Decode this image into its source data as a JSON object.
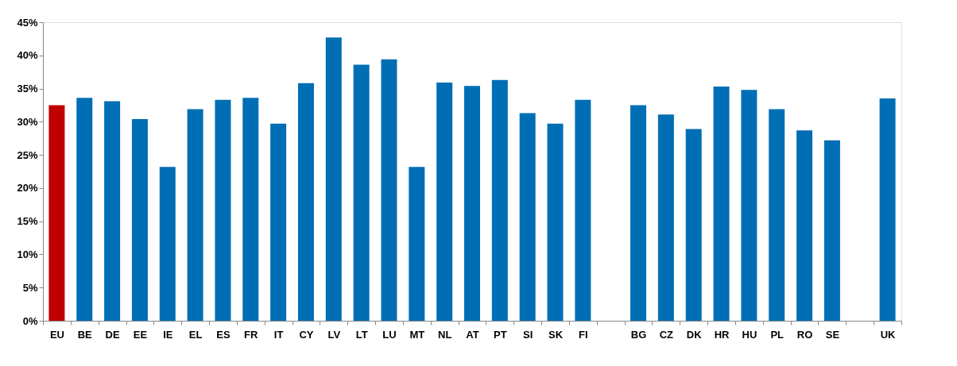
{
  "chart_data": {
    "type": "bar",
    "categories": [
      "EU",
      "BE",
      "DE",
      "EE",
      "IE",
      "EL",
      "ES",
      "FR",
      "IT",
      "CY",
      "LV",
      "LT",
      "LU",
      "MT",
      "NL",
      "AT",
      "PT",
      "SI",
      "SK",
      "FI",
      null,
      "BG",
      "CZ",
      "DK",
      "HR",
      "HU",
      "PL",
      "RO",
      "SE",
      null,
      "UK"
    ],
    "values": [
      32.5,
      33.6,
      33.1,
      30.4,
      23.2,
      31.9,
      33.3,
      33.6,
      29.7,
      35.8,
      42.7,
      38.6,
      39.4,
      23.2,
      35.9,
      35.4,
      36.3,
      31.3,
      29.7,
      33.3,
      null,
      32.5,
      31.1,
      28.9,
      35.3,
      34.8,
      31.9,
      28.7,
      27.2,
      null,
      33.5
    ],
    "colors": [
      "#c00000",
      "#006eb4",
      "#006eb4",
      "#006eb4",
      "#006eb4",
      "#006eb4",
      "#006eb4",
      "#006eb4",
      "#006eb4",
      "#006eb4",
      "#006eb4",
      "#006eb4",
      "#006eb4",
      "#006eb4",
      "#006eb4",
      "#006eb4",
      "#006eb4",
      "#006eb4",
      "#006eb4",
      "#006eb4",
      "#006eb4",
      "#006eb4",
      "#006eb4",
      "#006eb4",
      "#006eb4",
      "#006eb4",
      "#006eb4",
      "#006eb4",
      "#006eb4",
      "#006eb4",
      "#006eb4"
    ],
    "ylim": [
      0,
      45
    ],
    "yticks": [
      {
        "value": 0,
        "label": "0%"
      },
      {
        "value": 5,
        "label": "5%"
      },
      {
        "value": 10,
        "label": "10%"
      },
      {
        "value": 15,
        "label": "15%"
      },
      {
        "value": 20,
        "label": "20%"
      },
      {
        "value": 25,
        "label": "25%"
      },
      {
        "value": 30,
        "label": "30%"
      },
      {
        "value": 35,
        "label": "35%"
      },
      {
        "value": 40,
        "label": "40%"
      },
      {
        "value": 45,
        "label": "45%"
      }
    ],
    "grid": false,
    "legend": false
  }
}
